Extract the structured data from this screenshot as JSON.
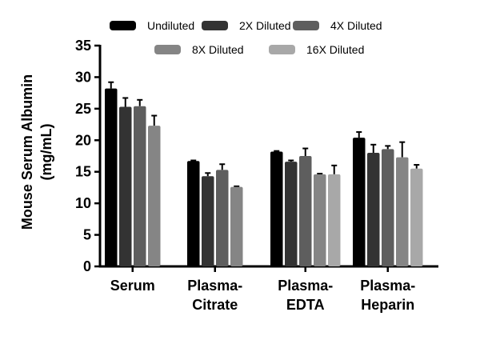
{
  "chart_data": {
    "type": "bar",
    "title": "",
    "ylabel": [
      "Mouse  Serum Albumin",
      "(mg/mL)"
    ],
    "xlabel": "",
    "ylim": [
      0,
      35
    ],
    "yticks": [
      0,
      5,
      10,
      15,
      20,
      25,
      30,
      35
    ],
    "grid": false,
    "legend_position": "top",
    "categories": [
      [
        "Serum",
        ""
      ],
      [
        "Plasma-",
        "Citrate"
      ],
      [
        "Plasma-",
        "EDTA"
      ],
      [
        "Plasma-",
        "Heparin"
      ]
    ],
    "series": [
      {
        "name": "Undiluted",
        "color": "#000000",
        "values": [
          28.2,
          16.7,
          18.2,
          20.4
        ],
        "errors": [
          1.0,
          0.1,
          0.1,
          0.9
        ]
      },
      {
        "name": "2X Diluted",
        "color": "#333333",
        "values": [
          25.3,
          14.3,
          16.6,
          18.0
        ],
        "errors": [
          1.4,
          0.5,
          0.2,
          1.3
        ]
      },
      {
        "name": "4X Diluted",
        "color": "#5e5e5e",
        "values": [
          25.4,
          15.3,
          17.5,
          18.6
        ],
        "errors": [
          1.0,
          0.9,
          1.2,
          0.5
        ]
      },
      {
        "name": "8X Diluted",
        "color": "#858585",
        "values": [
          22.3,
          12.6,
          14.6,
          17.3
        ],
        "errors": [
          1.6,
          0.1,
          0.1,
          2.4
        ]
      },
      {
        "name": "16X Diluted",
        "color": "#a8a8a8",
        "values": [
          null,
          null,
          14.6,
          15.5
        ],
        "errors": [
          null,
          null,
          1.4,
          0.6
        ]
      }
    ]
  }
}
